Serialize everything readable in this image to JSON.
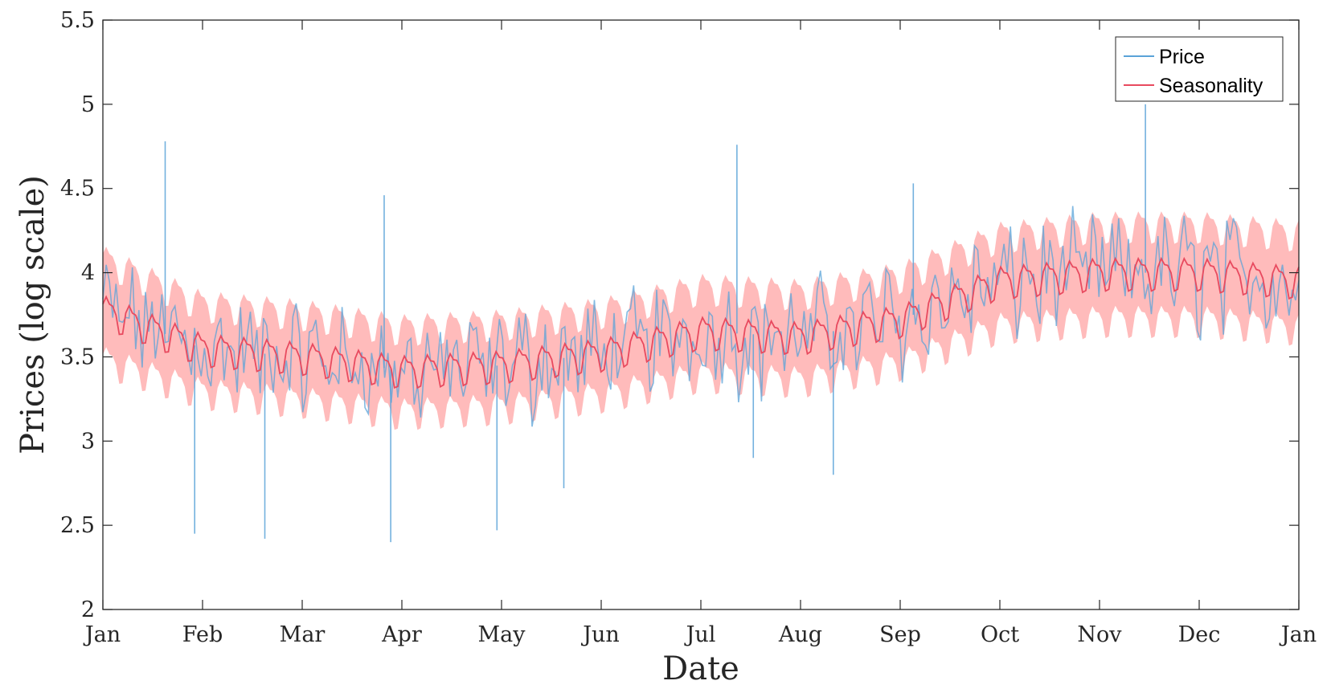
{
  "chart_data": {
    "type": "line",
    "title": "",
    "xlabel": "Date",
    "ylabel": "Prices (log scale)",
    "x_ticks": [
      "Jan",
      "Feb",
      "Mar",
      "Apr",
      "May",
      "Jun",
      "Jul",
      "Aug",
      "Sep",
      "Oct",
      "Nov",
      "Dec",
      "Jan"
    ],
    "y_ticks": [
      "2",
      "2.5",
      "3",
      "3.5",
      "4",
      "4.5",
      "5",
      "5.5"
    ],
    "xlim": [
      "Jan",
      "Jan"
    ],
    "ylim": [
      2,
      5.5
    ],
    "grid": false,
    "legend_position": "top-right",
    "x_months": [
      0,
      1,
      2,
      3,
      4,
      5,
      6,
      7,
      8,
      9,
      10,
      11,
      12
    ],
    "seasonality_level": [
      3.78,
      3.55,
      3.5,
      3.42,
      3.45,
      3.52,
      3.65,
      3.62,
      3.72,
      3.95,
      4.0,
      4.0,
      3.95
    ],
    "seasonality_band_halfwidth": [
      0.3,
      0.26,
      0.26,
      0.25,
      0.25,
      0.25,
      0.26,
      0.26,
      0.26,
      0.27,
      0.28,
      0.28,
      0.28
    ],
    "price_spikes": [
      {
        "x": "Jan 20",
        "y": 4.78
      },
      {
        "x": "Jan 29",
        "y": 2.45
      },
      {
        "x": "Feb 20",
        "y": 2.42
      },
      {
        "x": "Mar 26",
        "y": 4.46
      },
      {
        "x": "Mar 28",
        "y": 2.4
      },
      {
        "x": "Apr 30",
        "y": 2.47
      },
      {
        "x": "May 20",
        "y": 2.72
      },
      {
        "x": "Jul 12",
        "y": 4.76
      },
      {
        "x": "Jul 17",
        "y": 2.9
      },
      {
        "x": "Aug 11",
        "y": 2.8
      },
      {
        "x": "Sep 5",
        "y": 4.53
      },
      {
        "x": "Nov 15",
        "y": 5.0
      }
    ],
    "series": [
      {
        "name": "Price",
        "color": "#5aa3d8"
      },
      {
        "name": "Seasonality",
        "color": "#e84a5f",
        "band_color": "#ff9e9e"
      }
    ]
  }
}
